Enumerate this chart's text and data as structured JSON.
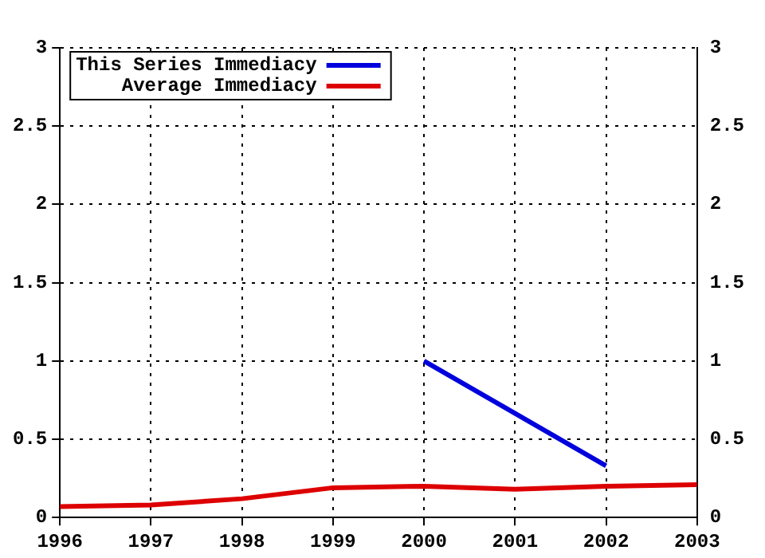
{
  "chart_data": {
    "type": "line",
    "x": [
      1996,
      1997,
      1998,
      1999,
      2000,
      2001,
      2002,
      2003
    ],
    "series": [
      {
        "name": "This Series Immediacy",
        "color": "#0000dd",
        "x": [
          2000,
          2002
        ],
        "values": [
          1.0,
          0.33
        ]
      },
      {
        "name": "Average Immediacy",
        "color": "#dd0000",
        "values": [
          0.07,
          0.08,
          0.12,
          0.19,
          0.2,
          0.18,
          0.2,
          0.21
        ]
      }
    ],
    "xlim": [
      1996,
      2003
    ],
    "xticks": [
      1996,
      1997,
      1998,
      1999,
      2000,
      2001,
      2002,
      2003
    ],
    "ylim": [
      0,
      3
    ],
    "yticks": [
      0,
      0.5,
      1,
      1.5,
      2,
      2.5,
      3
    ],
    "y2lim": [
      0,
      3
    ],
    "y2ticks": [
      0,
      0.5,
      1,
      1.5,
      2,
      2.5,
      3
    ],
    "grid": true,
    "legend": "top left",
    "marker": "none",
    "line_style": "solid"
  }
}
